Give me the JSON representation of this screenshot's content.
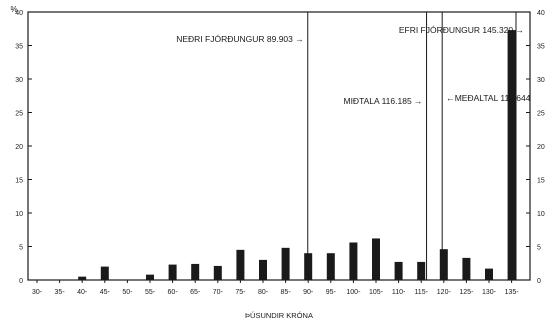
{
  "chart_data": {
    "type": "bar",
    "title": "",
    "xlabel": "ÞÚSUNDIR KRÓNA",
    "ylabel": "",
    "y_unit_label": "%",
    "ylim": [
      0,
      40
    ],
    "yticks": [
      "0",
      "5",
      "10",
      "15",
      "20",
      "25",
      "30",
      "35",
      "40"
    ],
    "grid": false,
    "legend": "none",
    "bar_color": "#1a1a1a",
    "categories": [
      "30-",
      "35-",
      "40-",
      "45-",
      "50-",
      "55-",
      "60-",
      "65-",
      "70-",
      "75-",
      "80-",
      "85-",
      "90-",
      "95-",
      "100-",
      "105-",
      "110-",
      "115-",
      "120-",
      "125-",
      "130-",
      "135-"
    ],
    "series": [
      {
        "values": [
          0,
          0,
          0.5,
          2,
          0,
          0.8,
          2.3,
          2.4,
          2.1,
          4.5,
          3.0,
          4.8,
          4.0,
          4.0,
          5.6,
          6.2,
          2.7,
          2.7,
          4.6,
          3.3,
          1.7,
          37.3
        ]
      }
    ],
    "annotations": [
      {
        "label": "NEÐRI FJÓRÐUNGUR 89.903",
        "x": 89.903,
        "arrow": "→"
      },
      {
        "label": "MIÐTALA 116.185",
        "x": 116.185,
        "arrow": "→"
      },
      {
        "label": "EFRI FJÓRÐUNGUR 145.320",
        "x": 145.32,
        "arrow": "→"
      },
      {
        "label": "MEÐALTAL 119.644",
        "x": 119.644,
        "arrow": "←"
      }
    ]
  }
}
